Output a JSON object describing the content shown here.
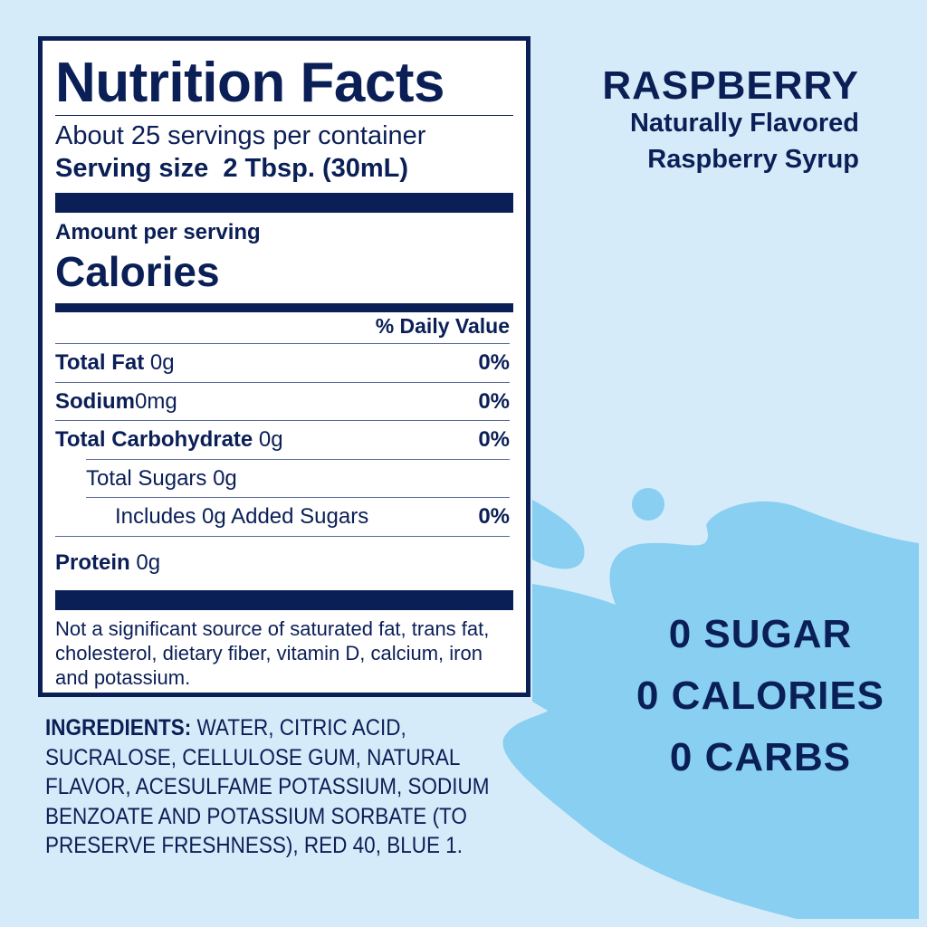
{
  "colors": {
    "navy": "#0b1f57",
    "background": "#d6ebf9",
    "splash": "#88cff2"
  },
  "label": {
    "title": "Nutrition Facts",
    "servings": "About 25 servings per container",
    "serving_size_label": "Serving size",
    "serving_size_value": "2 Tbsp. (30mL)",
    "amount_per_serving": "Amount per serving",
    "calories_label": "Calories",
    "daily_value_header": "% Daily Value",
    "rows": [
      {
        "name": "Total Fat",
        "amount": "0g",
        "dv": "0%"
      },
      {
        "name": "Sodium",
        "amount": "0mg",
        "dv": "0%"
      },
      {
        "name": "Total Carbohydrate",
        "amount": "0g",
        "dv": "0%"
      },
      {
        "name": "",
        "amount": "Total Sugars 0g",
        "dv": ""
      },
      {
        "name": "",
        "amount": "Includes 0g Added Sugars",
        "dv": "0%"
      },
      {
        "name": "Protein",
        "amount": "0g",
        "dv": ""
      }
    ],
    "footnote": "Not a significant source of saturated fat, trans fat, cholesterol, dietary fiber, vitamin D, calcium, iron and potassium."
  },
  "ingredients": {
    "label": "INGREDIENTS:",
    "text": " WATER, CITRIC ACID,  SUCRALOSE, CELLULOSE GUM, NATURAL FLAVOR, ACESULFAME POTASSIUM, SODIUM BENZOATE AND POTASSIUM SORBATE (TO PRESERVE FRESHNESS), RED 40, BLUE 1."
  },
  "product": {
    "flavor": "RASPBERRY",
    "line1": "Naturally Flavored",
    "line2": "Raspberry Syrup"
  },
  "claims": [
    "0 SUGAR",
    "0 CALORIES",
    "0 CARBS"
  ]
}
